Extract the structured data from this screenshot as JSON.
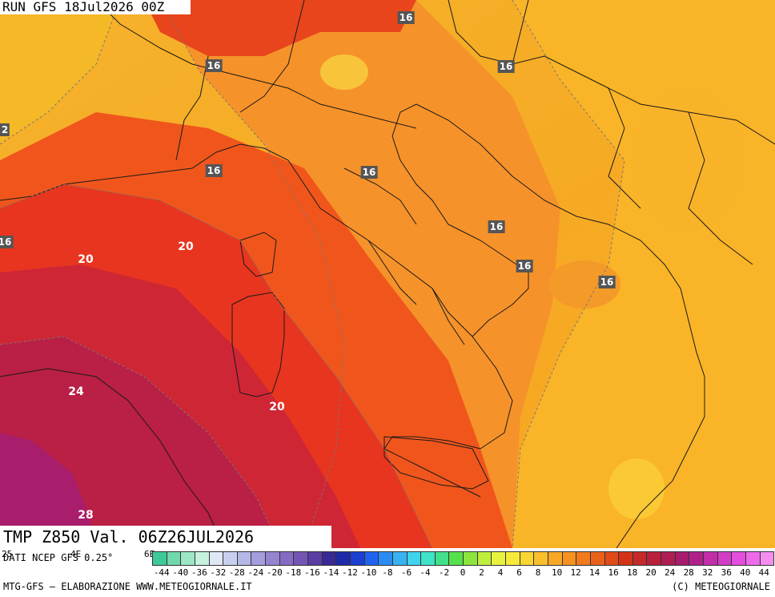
{
  "run_label": "RUN GFS 18Jul2026 00Z",
  "field_label": "TMP Z850 Val. 06Z26JUL2026",
  "data_credit": "DATI NCEP GFS 0.25°",
  "edge_ticks": [
    "25",
    "4E",
    "6E"
  ],
  "credit_left": "MTG-GFS – ELABORAZIONE WWW.METEOGIORNALE.IT",
  "credit_right": "(C) METEOGIORNALE",
  "contour_labels": [
    {
      "text": "16"
    },
    {
      "text": "16"
    },
    {
      "text": "16"
    },
    {
      "text": "2"
    },
    {
      "text": "16"
    },
    {
      "text": "16"
    },
    {
      "text": "16"
    },
    {
      "text": "16"
    },
    {
      "text": "16"
    },
    {
      "text": "20"
    },
    {
      "text": "20"
    },
    {
      "text": "16"
    },
    {
      "text": "24"
    },
    {
      "text": "20"
    },
    {
      "text": "28"
    }
  ],
  "colorbar": {
    "colors": [
      "#3fc99a",
      "#6fd8ad",
      "#9de6c6",
      "#c6f1df",
      "#e0e8f4",
      "#c9d0ee",
      "#b5b7e6",
      "#a59ddd",
      "#9683d0",
      "#856bc3",
      "#7455b5",
      "#5a3ea3",
      "#3a2a95",
      "#1f2aa8",
      "#1b3fd1",
      "#1e63f0",
      "#2a8cf2",
      "#39b2f1",
      "#3fd3ee",
      "#3fe3c6",
      "#42e08a",
      "#56e04c",
      "#8ce53c",
      "#c0ee3d",
      "#e7f33f",
      "#f8ea3b",
      "#fbd633",
      "#fbbf2d",
      "#f9a826",
      "#f69120",
      "#f07a1c",
      "#e96219",
      "#e04b18",
      "#d43318",
      "#c52a2b",
      "#b9203c",
      "#ae1e52",
      "#a81c6c",
      "#b0208a",
      "#c12ea8",
      "#d33dc5",
      "#e34fdc",
      "#ef6ae8",
      "#f58ef0"
    ],
    "tick_labels": [
      "-44",
      "-40",
      "-36",
      "-32",
      "-28",
      "-24",
      "-20",
      "-18",
      "-16",
      "-14",
      "-12",
      "-10",
      "-8",
      "-6",
      "-4",
      "-2",
      "0",
      "2",
      "4",
      "6",
      "8",
      "10",
      "12",
      "14",
      "16",
      "18",
      "20",
      "24",
      "28",
      "32",
      "36",
      "40",
      "44"
    ]
  }
}
